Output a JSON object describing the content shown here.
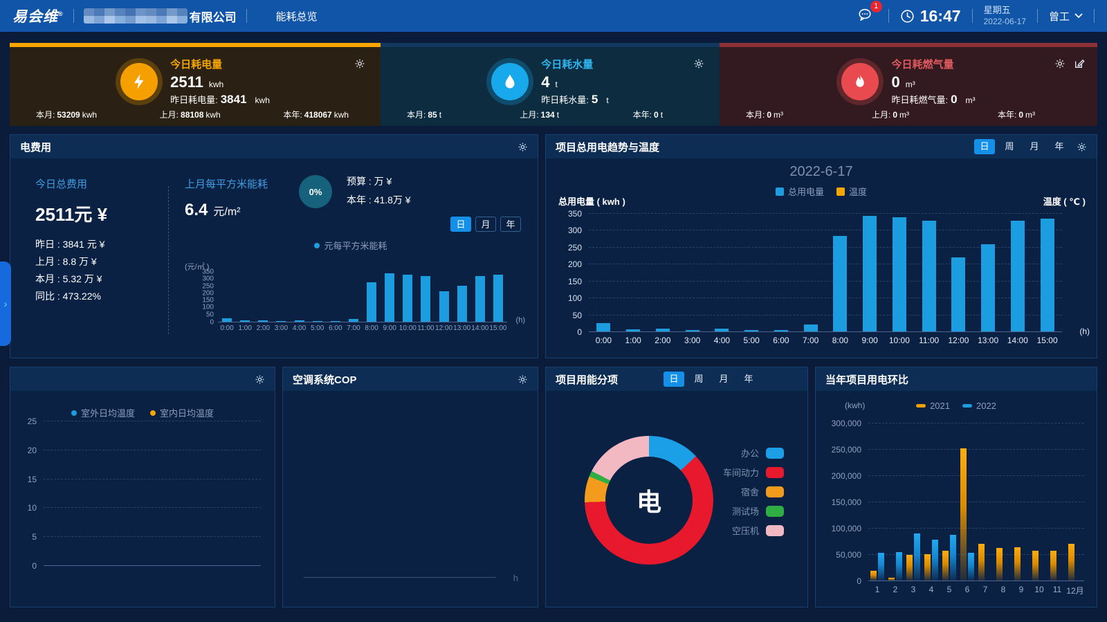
{
  "colors": {
    "nav_bg": "#1155a8",
    "page_bg": "#0a1c3a",
    "panel_bg": "#0b2144",
    "panel_header_bg": "#0d2d55",
    "accent_blue": "#1b9de0",
    "accent_orange": "#f5a600",
    "accent_red": "#e8474f",
    "active_tab": "#1590e8",
    "badge_red": "#e8262e"
  },
  "nav": {
    "logo": "易会维",
    "trademark": "®",
    "company_suffix": "有限公司",
    "menu": "能耗总览",
    "notif_badge": "1",
    "time": "16:47",
    "weekday": "星期五",
    "date": "2022-06-17",
    "user": "曾工"
  },
  "cards": [
    {
      "title": "今日耗电量",
      "value": "2511",
      "unit": "kwh",
      "prev_label": "昨日耗电量:",
      "prev_value": "3841",
      "prev_unit": "kwh",
      "icon": "lightning-icon",
      "accent": "#f7a600",
      "stats": [
        {
          "label": "本月:",
          "value": "53209",
          "unit": "kwh"
        },
        {
          "label": "上月:",
          "value": "88108",
          "unit": "kwh"
        },
        {
          "label": "本年:",
          "value": "418067",
          "unit": "kwh"
        }
      ]
    },
    {
      "title": "今日耗水量",
      "value": "4",
      "unit": "t",
      "prev_label": "昨日耗水量:",
      "prev_value": "5",
      "prev_unit": "t",
      "icon": "water-drop-icon",
      "accent": "#1b9de0",
      "stats": [
        {
          "label": "本月:",
          "value": "85",
          "unit": "t"
        },
        {
          "label": "上月:",
          "value": "134",
          "unit": "t"
        },
        {
          "label": "本年:",
          "value": "0",
          "unit": "t"
        }
      ]
    },
    {
      "title": "今日耗燃气量",
      "value": "0",
      "unit": "m³",
      "prev_label": "昨日耗燃气量:",
      "prev_value": "0",
      "prev_unit": "m³",
      "icon": "flame-icon",
      "accent": "#8e3038",
      "stats": [
        {
          "label": "本月:",
          "value": "0",
          "unit": "m³"
        },
        {
          "label": "上月:",
          "value": "0",
          "unit": "m³"
        },
        {
          "label": "本年:",
          "value": "0",
          "unit": "m³"
        }
      ]
    }
  ],
  "elec_cost": {
    "title": "电费用",
    "today_label": "今日总费用",
    "today_value": "2511元 ¥",
    "rows": [
      "昨日 : 3841 元 ¥",
      "上月 : 8.8 万 ¥",
      "本月 : 5.32 万 ¥",
      "同比 : 473.22%"
    ],
    "sqm_label": "上月每平方米能耗",
    "sqm_value": "6.4",
    "sqm_unit": "元/m²",
    "gauge_pct": "0%",
    "budget": "预算 : 万 ¥",
    "year": "本年 : 41.8万 ¥",
    "tabs": [
      "日",
      "月",
      "年"
    ],
    "active_tab": 0,
    "legend": "元每平方米能耗",
    "chart": {
      "type": "bar",
      "unit": "(元/㎡ )",
      "xunit": "(h)",
      "color": "#1b9de0",
      "ymax": 350,
      "yticks": [
        "350",
        "300",
        "250",
        "200",
        "150",
        "100",
        "50",
        "0"
      ],
      "x": [
        "0:00",
        "1:00",
        "2:00",
        "3:00",
        "4:00",
        "5:00",
        "6:00",
        "7:00",
        "8:00",
        "9:00",
        "10:00",
        "11:00",
        "12:00",
        "13:00",
        "14:00",
        "15:00"
      ],
      "values": [
        25,
        8,
        8,
        5,
        9,
        5,
        4,
        18,
        275,
        340,
        332,
        322,
        212,
        255,
        322,
        330
      ]
    }
  },
  "trend": {
    "title": "项目总用电趋势与温度",
    "tabs": [
      "日",
      "周",
      "月",
      "年"
    ],
    "active_tab": 0,
    "date": "2022-6-17",
    "legend": [
      {
        "label": "总用电量",
        "color": "#1b9de0"
      },
      {
        "label": "温度",
        "color": "#f5a600"
      }
    ],
    "left_axis": "总用电量 ( kwh )",
    "right_axis": "温度 ( ℃ )",
    "chart": {
      "type": "bar",
      "xunit": "(h)",
      "color": "#1b9de0",
      "ymax": 350,
      "yticks": [
        "350",
        "300",
        "250",
        "200",
        "150",
        "100",
        "50",
        "0"
      ],
      "x": [
        "0:00",
        "1:00",
        "2:00",
        "3:00",
        "4:00",
        "5:00",
        "6:00",
        "7:00",
        "8:00",
        "9:00",
        "10:00",
        "11:00",
        "12:00",
        "13:00",
        "14:00",
        "15:00"
      ],
      "values": [
        25,
        7,
        8,
        5,
        9,
        5,
        4,
        20,
        282,
        342,
        337,
        328,
        220,
        258,
        328,
        333
      ]
    }
  },
  "temp_panel": {
    "legend": [
      {
        "label": "室外日均温度",
        "color": "#1b9de0"
      },
      {
        "label": "室内日均温度",
        "color": "#f5a600"
      }
    ],
    "yticks": [
      "25",
      "20",
      "15",
      "10",
      "5",
      "0"
    ]
  },
  "cop_panel": {
    "title": "空调系统COP",
    "xunit": "h"
  },
  "breakdown": {
    "title": "项目用能分项",
    "tabs": [
      "日",
      "周",
      "月",
      "年"
    ],
    "active_tab": 0,
    "center": "电",
    "type": "pie",
    "slices": [
      {
        "label": "办公",
        "color": "#1ba0e8",
        "pct": 13
      },
      {
        "label": "车间动力",
        "color": "#e8192c",
        "pct": 61.5
      },
      {
        "label": "宿舍",
        "color": "#f29b1d",
        "pct": 6.5
      },
      {
        "label": "测试场",
        "color": "#2fae43",
        "pct": 1.5
      },
      {
        "label": "空压机",
        "color": "#f2b9c3",
        "pct": 17.5
      }
    ]
  },
  "yoy": {
    "title": "当年项目用电环比",
    "unit": "(kwh)",
    "type": "bar",
    "ymax": 300000,
    "yticks": [
      "300,000",
      "250,000",
      "200,000",
      "150,000",
      "100,000",
      "50,000",
      "0"
    ],
    "months": [
      "1",
      "2",
      "3",
      "4",
      "5",
      "6",
      "7",
      "8",
      "9",
      "10",
      "11",
      "12月"
    ],
    "series": [
      {
        "name": "2021",
        "color": "#f5a000",
        "values": [
          18000,
          5000,
          49000,
          50000,
          56000,
          251000,
          70000,
          62000,
          63000,
          56000,
          56000,
          70000
        ]
      },
      {
        "name": "2022",
        "color": "#1b9de0",
        "values": [
          53000,
          54000,
          90000,
          77000,
          87000,
          53000,
          0,
          0,
          0,
          0,
          0,
          0
        ]
      }
    ]
  },
  "drawer": {
    "chevron": "›"
  }
}
